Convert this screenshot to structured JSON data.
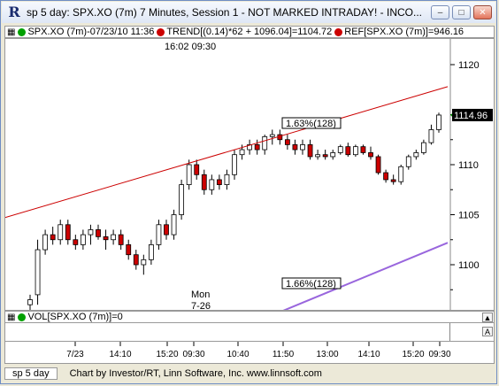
{
  "window": {
    "title": "sp 5 day: SPX.XO (7m) 7 Minutes, Session 1 - NOT MARKED INTRADAY! - INCO...",
    "app_icon_glyph": "R"
  },
  "info_bar": {
    "symbol_line": "SPX.XO (7m)-07/23/10 11:36",
    "trend_text": "TREND[(0.14)*62 + 1096.04]=1104.72",
    "ref_text": "REF[SPX.XO (7m)]=946.16",
    "colors": {
      "symbol": "#00a000",
      "trend": "#cc0000",
      "ref": "#cc0000"
    }
  },
  "chart": {
    "time_label": "16:02  09:30",
    "day_label_1": "Mon",
    "day_label_2": "7-26",
    "upper_annotation": "1.63%(128)",
    "lower_annotation": "1.66%(128)",
    "last_price": "1114.96",
    "price_ticks": [
      "1120",
      "1115",
      "1110",
      "1105",
      "1100"
    ]
  },
  "vol_bar": {
    "label": "VOL[SPX.XO (7m)]=0",
    "color": "#00a000"
  },
  "time_axis": {
    "labels": [
      "7/23",
      "14:10",
      "15:20",
      "09:30",
      "10:40",
      "11:50",
      "13:00",
      "14:10",
      "15:20",
      "09:30"
    ]
  },
  "status_bar": {
    "tab_label": "sp 5 day",
    "credit": "Chart by Investor/RT, Linn Software, Inc. www.linnsoft.com"
  },
  "chart_data": {
    "type": "candlestick",
    "symbol": "SPX.XO",
    "interval": "7 Minutes",
    "price_axis_ticks": [
      1100,
      1105,
      1110,
      1115,
      1120
    ],
    "last_price": 1114.96,
    "candles": [
      [
        1096.0,
        1097.0,
        1094.0,
        1096.5
      ],
      [
        1097.0,
        1102.5,
        1096.0,
        1101.5
      ],
      [
        1101.5,
        1103.5,
        1101.0,
        1103.0
      ],
      [
        1103.0,
        1103.8,
        1102.0,
        1102.5
      ],
      [
        1102.5,
        1104.5,
        1102.0,
        1104.0
      ],
      [
        1104.0,
        1104.5,
        1102.0,
        1102.5
      ],
      [
        1102.5,
        1103.0,
        1101.5,
        1102.0
      ],
      [
        1102.0,
        1103.5,
        1101.5,
        1103.0
      ],
      [
        1103.0,
        1104.0,
        1102.0,
        1103.5
      ],
      [
        1103.5,
        1104.0,
        1102.5,
        1102.8
      ],
      [
        1102.8,
        1103.5,
        1101.5,
        1102.5
      ],
      [
        1102.5,
        1103.5,
        1102.0,
        1103.0
      ],
      [
        1103.0,
        1103.5,
        1101.5,
        1102.0
      ],
      [
        1102.0,
        1102.5,
        1100.5,
        1101.0
      ],
      [
        1101.0,
        1101.5,
        1099.5,
        1100.0
      ],
      [
        1100.0,
        1101.0,
        1099.0,
        1100.5
      ],
      [
        1100.5,
        1102.5,
        1100.0,
        1102.0
      ],
      [
        1102.0,
        1104.5,
        1101.5,
        1104.0
      ],
      [
        1104.0,
        1104.5,
        1102.5,
        1103.0
      ],
      [
        1103.0,
        1105.5,
        1102.5,
        1105.0
      ],
      [
        1105.0,
        1108.5,
        1104.5,
        1108.0
      ],
      [
        1108.0,
        1110.5,
        1107.5,
        1110.0
      ],
      [
        1110.0,
        1110.5,
        1108.5,
        1109.0
      ],
      [
        1109.0,
        1109.5,
        1107.0,
        1107.5
      ],
      [
        1107.5,
        1109.0,
        1107.0,
        1108.5
      ],
      [
        1108.5,
        1109.0,
        1107.5,
        1108.0
      ],
      [
        1108.0,
        1109.5,
        1107.5,
        1109.0
      ],
      [
        1109.0,
        1111.5,
        1108.5,
        1111.0
      ],
      [
        1111.0,
        1112.0,
        1110.5,
        1111.5
      ],
      [
        1111.5,
        1112.5,
        1111.0,
        1112.0
      ],
      [
        1112.0,
        1112.5,
        1111.0,
        1111.5
      ],
      [
        1111.5,
        1113.0,
        1111.0,
        1112.8
      ],
      [
        1112.8,
        1113.5,
        1112.0,
        1113.0
      ],
      [
        1113.0,
        1113.5,
        1112.0,
        1112.5
      ],
      [
        1112.5,
        1113.0,
        1111.5,
        1112.0
      ],
      [
        1112.0,
        1112.5,
        1111.0,
        1111.5
      ],
      [
        1111.5,
        1112.5,
        1111.0,
        1112.0
      ],
      [
        1112.0,
        1112.5,
        1110.5,
        1110.8
      ],
      [
        1110.8,
        1111.5,
        1110.5,
        1111.0
      ],
      [
        1111.0,
        1111.5,
        1110.5,
        1110.8
      ],
      [
        1110.8,
        1111.5,
        1110.5,
        1111.2
      ],
      [
        1111.2,
        1112.0,
        1111.0,
        1111.8
      ],
      [
        1111.8,
        1112.2,
        1110.8,
        1111.0
      ],
      [
        1111.0,
        1112.0,
        1110.8,
        1111.8
      ],
      [
        1111.8,
        1112.0,
        1111.0,
        1111.2
      ],
      [
        1111.2,
        1111.8,
        1110.5,
        1110.8
      ],
      [
        1110.8,
        1111.0,
        1109.0,
        1109.2
      ],
      [
        1109.2,
        1109.5,
        1108.2,
        1108.5
      ],
      [
        1108.5,
        1109.0,
        1108.0,
        1108.3
      ],
      [
        1108.3,
        1110.0,
        1108.0,
        1109.8
      ],
      [
        1109.8,
        1111.0,
        1109.5,
        1110.8
      ],
      [
        1110.8,
        1111.5,
        1110.5,
        1111.2
      ],
      [
        1111.2,
        1112.5,
        1111.0,
        1112.2
      ],
      [
        1112.2,
        1114.0,
        1112.0,
        1113.5
      ],
      [
        1113.5,
        1115.2,
        1113.2,
        1114.96
      ]
    ],
    "trend_lines": [
      {
        "name": "TREND",
        "color": "#cc0000",
        "from": 1104.72,
        "to": 1117.8
      },
      {
        "name": "channel",
        "color": "#9966dd",
        "from": 1093.5,
        "to": 1102.2
      }
    ]
  }
}
